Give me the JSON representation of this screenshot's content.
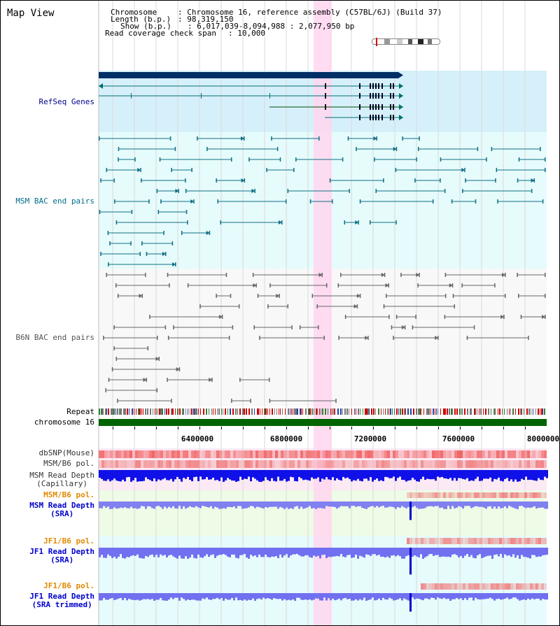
{
  "page": {
    "title": "Map View"
  },
  "info": {
    "chromosome_label": "Chromosome",
    "chromosome_value": ": Chromosome 16, reference assembly (C57BL/6J) (Build 37)",
    "length_label": "Length (b.p.)",
    "length_value": ": 98,319,150",
    "show_label": "Show (b.p.)",
    "show_value": ": 6,017,039-8,094,988 : 2,077,950 bp",
    "coverage_label": "Read coverage check span",
    "coverage_value": ": 10,000"
  },
  "tracks": {
    "refseq": "RefSeq Genes",
    "msm_bac": "MSM BAC end pairs",
    "b6n_bac": "B6N BAC end pairs",
    "repeat": "Repeat",
    "chromosome": "chromosome 16",
    "dbsnp": "dbSNP(Mouse)",
    "msm_b6_pol": "MSM/B6 pol.",
    "msm_depth_cap_1": "MSM Read Depth",
    "msm_depth_cap_2": "(Capillary)",
    "msm_b6_pol2": "MSM/B6 pol.",
    "msm_depth_sra_1": "MSM Read Depth",
    "msm_depth_sra_2": "(SRA)",
    "jf1_b6_pol": "JF1/B6 pol.",
    "jf1_depth_sra_1": "JF1 Read Depth",
    "jf1_depth_sra_2": "(SRA)",
    "jf1_b6_pol2": "JF1/B6 pol.",
    "jf1_depth_trim_1": "JF1 Read Depth",
    "jf1_depth_trim_2": "(SRA trimmed)"
  },
  "axis": {
    "ticks": [
      "6400000",
      "6800000",
      "7200000",
      "7600000",
      "8000000"
    ]
  },
  "colors": {
    "refseq_label": "#00008b",
    "msm_label": "#006d8a",
    "b6n_label": "#555555",
    "pol_label": "#e08a00",
    "depth_label": "#0000cc",
    "highlight": "#ffd6ee",
    "chromosome_bar": "#006400"
  }
}
